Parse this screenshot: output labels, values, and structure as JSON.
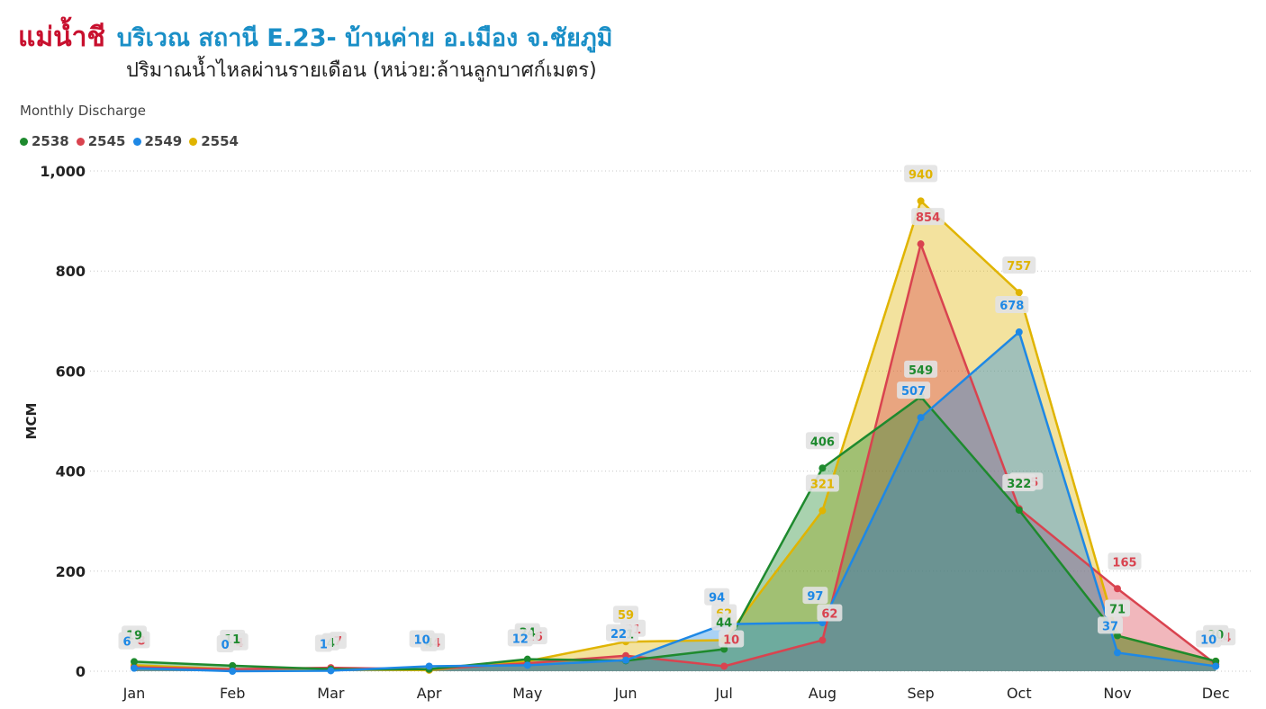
{
  "header": {
    "title_red": "แม่น้ำชี",
    "title_blue": "บริเวณ สถานี E.23- บ้านค่าย อ.เมือง จ.ชัยภูมิ",
    "subtitle": "ปริมาณน้ำไหลผ่านรายเดือน (หน่วย:ล้านลูกบาศก์เมตร)"
  },
  "chart_data": {
    "type": "area",
    "title": "Monthly Discharge",
    "ylabel": "MCM",
    "xlabel": "",
    "ylim": [
      0,
      1000
    ],
    "yticks": [
      "0",
      "200",
      "400",
      "600",
      "800",
      "1,000"
    ],
    "categories": [
      "Jan",
      "Feb",
      "Mar",
      "Apr",
      "May",
      "Jun",
      "Jul",
      "Aug",
      "Sep",
      "Oct",
      "Nov",
      "Dec"
    ],
    "legend_position": "top-left",
    "grid": true,
    "series": [
      {
        "name": "2538",
        "color": "#1e8a2e",
        "values": [
          19,
          11,
          4,
          4,
          24,
          21,
          44,
          406,
          549,
          322,
          71,
          20
        ]
      },
      {
        "name": "2545",
        "color": "#d9434f",
        "values": [
          8,
          4,
          7,
          4,
          16,
          31,
          10,
          62,
          854,
          325,
          165,
          14
        ]
      },
      {
        "name": "2549",
        "color": "#1e88e5",
        "values": [
          6,
          0,
          1,
          10,
          12,
          22,
          94,
          97,
          507,
          678,
          37,
          10
        ]
      },
      {
        "name": "2554",
        "color": "#e0b400",
        "values": [
          12,
          4,
          4,
          2,
          20,
          59,
          62,
          321,
          940,
          757,
          71,
          20
        ]
      }
    ]
  }
}
